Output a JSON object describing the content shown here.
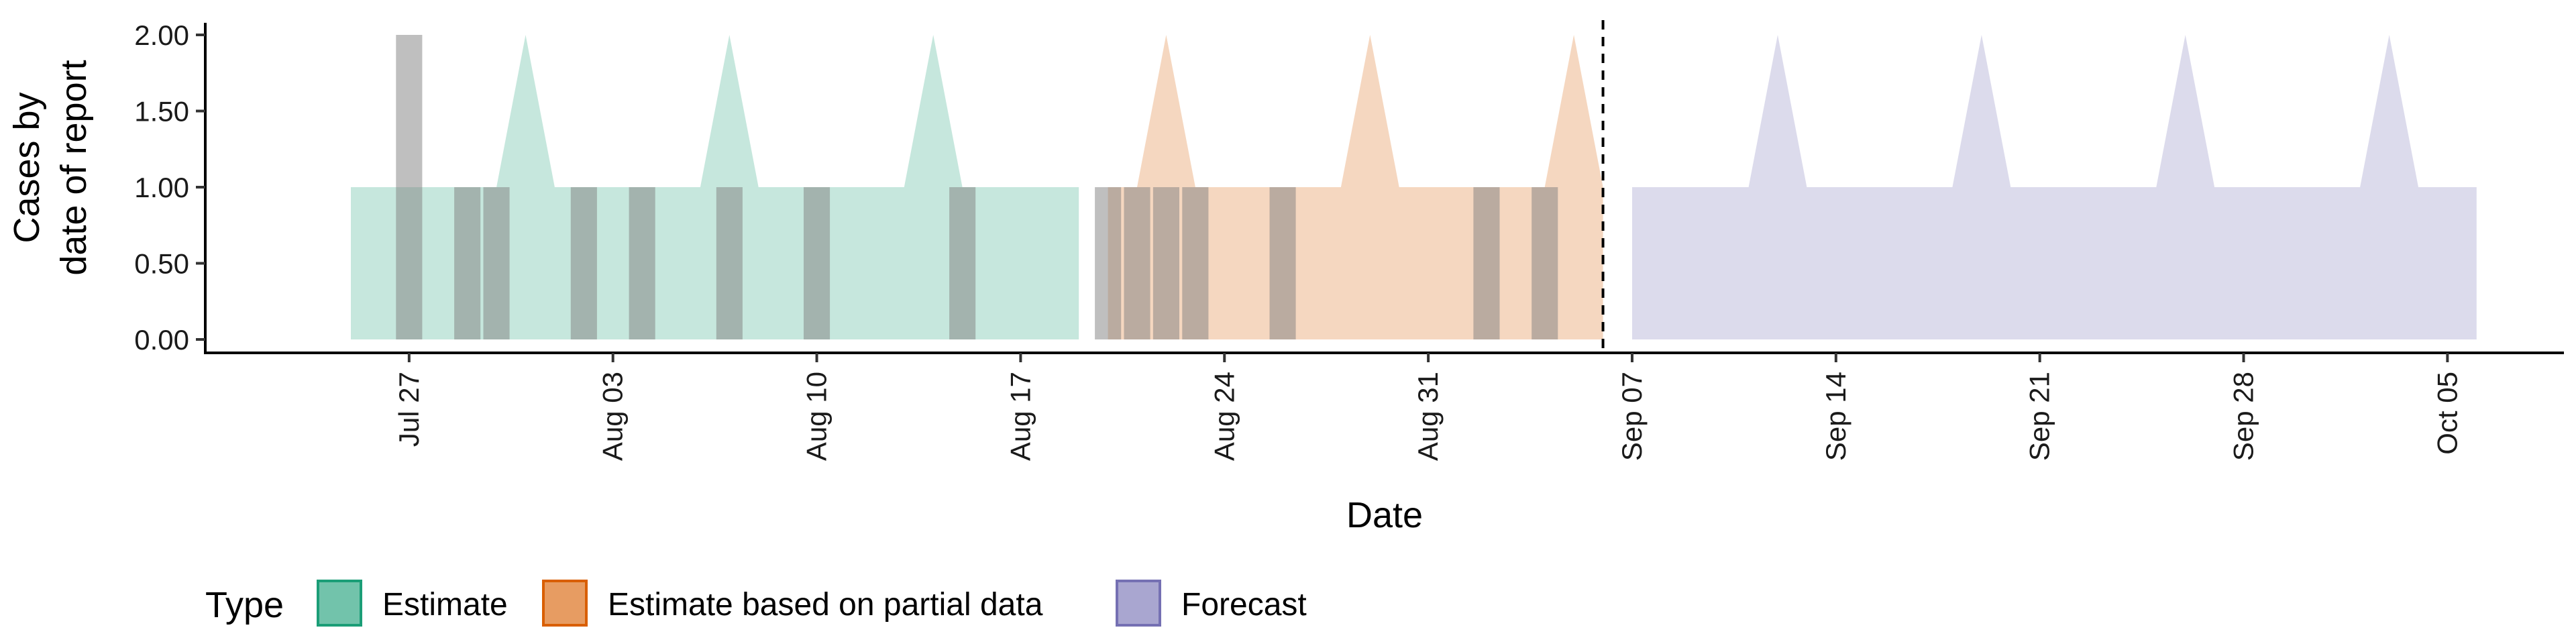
{
  "chart_data": {
    "type": "area",
    "xlabel": "Date",
    "ylabel": [
      "Cases by",
      "date of report"
    ],
    "ylim": [
      0,
      2
    ],
    "yticks": [
      "0.00",
      "0.50",
      "1.00",
      "1.50",
      "2.00"
    ],
    "xlim": [
      "2020-07-20",
      "2020-10-09"
    ],
    "xticks": [
      {
        "date": "2020-07-27",
        "label": "Jul 27"
      },
      {
        "date": "2020-08-03",
        "label": "Aug 03"
      },
      {
        "date": "2020-08-10",
        "label": "Aug 10"
      },
      {
        "date": "2020-08-17",
        "label": "Aug 17"
      },
      {
        "date": "2020-08-24",
        "label": "Aug 24"
      },
      {
        "date": "2020-08-31",
        "label": "Aug 31"
      },
      {
        "date": "2020-09-07",
        "label": "Sep 07"
      },
      {
        "date": "2020-09-14",
        "label": "Sep 14"
      },
      {
        "date": "2020-09-21",
        "label": "Sep 21"
      },
      {
        "date": "2020-09-28",
        "label": "Sep 28"
      },
      {
        "date": "2020-10-05",
        "label": "Oct 05"
      }
    ],
    "forecast_start": "2020-09-06",
    "legend": {
      "title": "Type",
      "position": "bottom"
    },
    "grid": false,
    "series": [
      {
        "name": "Estimate",
        "color": "#1b9e77",
        "x_range": [
          "2020-07-25",
          "2020-08-19"
        ],
        "baseline": 1,
        "peaks": [
          {
            "date": "2020-07-31",
            "value": 2
          },
          {
            "date": "2020-08-07",
            "value": 2
          },
          {
            "date": "2020-08-14",
            "value": 2
          }
        ]
      },
      {
        "name": "Estimate based on partial data",
        "color": "#d95f02",
        "x_range": [
          "2020-08-20",
          "2020-09-06"
        ],
        "baseline": 1,
        "peaks": [
          {
            "date": "2020-08-22",
            "value": 2
          },
          {
            "date": "2020-08-29",
            "value": 2
          },
          {
            "date": "2020-09-05",
            "value": 2
          }
        ]
      },
      {
        "name": "Forecast",
        "color": "#7570b3",
        "x_range": [
          "2020-09-07",
          "2020-10-06"
        ],
        "baseline": 1,
        "peaks": [
          {
            "date": "2020-09-12",
            "value": 2
          },
          {
            "date": "2020-09-19",
            "value": 2
          },
          {
            "date": "2020-09-26",
            "value": 2
          },
          {
            "date": "2020-10-03",
            "value": 2
          }
        ]
      }
    ],
    "reported_cases": [
      {
        "date": "2020-07-27",
        "value": 2
      },
      {
        "date": "2020-07-29",
        "value": 1
      },
      {
        "date": "2020-07-30",
        "value": 1
      },
      {
        "date": "2020-08-02",
        "value": 1
      },
      {
        "date": "2020-08-04",
        "value": 1
      },
      {
        "date": "2020-08-07",
        "value": 1
      },
      {
        "date": "2020-08-10",
        "value": 1
      },
      {
        "date": "2020-08-15",
        "value": 1
      },
      {
        "date": "2020-08-20",
        "value": 1
      },
      {
        "date": "2020-08-21",
        "value": 1
      },
      {
        "date": "2020-08-22",
        "value": 1
      },
      {
        "date": "2020-08-23",
        "value": 1
      },
      {
        "date": "2020-08-26",
        "value": 1
      },
      {
        "date": "2020-09-02",
        "value": 1
      },
      {
        "date": "2020-09-04",
        "value": 1
      }
    ],
    "bar_color": "#808080"
  }
}
